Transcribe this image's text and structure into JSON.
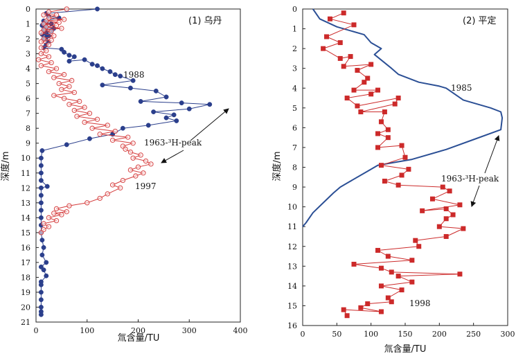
{
  "chart_data": [
    {
      "type": "scatter",
      "title": "(1) 乌丹",
      "xlabel": "氚含量/TU",
      "ylabel": "深度/m",
      "xlim": [
        0,
        400
      ],
      "ylim": [
        0,
        21
      ],
      "y_inverted": true,
      "x_ticks": [
        0,
        100,
        200,
        300,
        400
      ],
      "y_ticks": [
        0,
        1,
        2,
        3,
        4,
        5,
        6,
        7,
        8,
        9,
        10,
        11,
        12,
        13,
        14,
        15,
        16,
        17,
        18,
        19,
        20,
        21
      ],
      "annotation": "1963-³H-peak",
      "series": [
        {
          "name": "1988",
          "color": "#2b3f8c",
          "marker": "filled-circle",
          "points": [
            [
              120,
              0
            ],
            [
              20,
              0.3
            ],
            [
              25,
              0.5
            ],
            [
              45,
              0.6
            ],
            [
              15,
              0.8
            ],
            [
              20,
              0.9
            ],
            [
              30,
              1.0
            ],
            [
              12,
              1.1
            ],
            [
              20,
              1.2
            ],
            [
              35,
              1.3
            ],
            [
              15,
              1.4
            ],
            [
              30,
              1.5
            ],
            [
              20,
              1.6
            ],
            [
              12,
              1.7
            ],
            [
              25,
              1.8
            ],
            [
              20,
              1.9
            ],
            [
              15,
              2.0
            ],
            [
              25,
              2.2
            ],
            [
              20,
              2.4
            ],
            [
              15,
              2.6
            ],
            [
              50,
              2.7
            ],
            [
              55,
              2.9
            ],
            [
              65,
              3.1
            ],
            [
              75,
              3.2
            ],
            [
              65,
              3.5
            ],
            [
              95,
              3.4
            ],
            [
              110,
              3.7
            ],
            [
              120,
              3.8
            ],
            [
              130,
              4.0
            ],
            [
              145,
              4.2
            ],
            [
              155,
              4.4
            ],
            [
              165,
              4.5
            ],
            [
              190,
              4.8
            ],
            [
              130,
              5.1
            ],
            [
              185,
              5.3
            ],
            [
              235,
              5.5
            ],
            [
              255,
              5.9
            ],
            [
              205,
              6.2
            ],
            [
              285,
              6.3
            ],
            [
              340,
              6.4
            ],
            [
              300,
              6.7
            ],
            [
              230,
              6.9
            ],
            [
              270,
              7.1
            ],
            [
              255,
              7.3
            ],
            [
              275,
              7.5
            ],
            [
              220,
              7.8
            ],
            [
              170,
              8.0
            ],
            [
              150,
              8.4
            ],
            [
              105,
              8.7
            ],
            [
              60,
              9.1
            ],
            [
              12,
              9.5
            ],
            [
              10,
              10.0
            ],
            [
              10,
              10.5
            ],
            [
              10,
              11.0
            ],
            [
              10,
              11.5
            ],
            [
              22,
              11.9
            ],
            [
              10,
              12.0
            ],
            [
              10,
              12.5
            ],
            [
              10,
              13.0
            ],
            [
              10,
              13.5
            ],
            [
              10,
              14.0
            ],
            [
              10,
              14.5
            ],
            [
              10,
              15.0
            ],
            [
              12,
              15.5
            ],
            [
              15,
              16.0
            ],
            [
              12,
              16.5
            ],
            [
              20,
              17.0
            ],
            [
              10,
              17.3
            ],
            [
              15,
              17.5
            ],
            [
              20,
              17.9
            ],
            [
              10,
              18.3
            ],
            [
              10,
              18.5
            ],
            [
              10,
              19.0
            ],
            [
              10,
              19.5
            ],
            [
              10,
              20.0
            ],
            [
              10,
              20.3
            ],
            [
              10,
              20.5
            ]
          ]
        },
        {
          "name": "1997",
          "color": "#d43a3a",
          "marker": "open-circle",
          "points": [
            [
              60,
              0
            ],
            [
              25,
              0.2
            ],
            [
              15,
              0.4
            ],
            [
              40,
              0.4
            ],
            [
              25,
              0.6
            ],
            [
              55,
              0.7
            ],
            [
              20,
              0.8
            ],
            [
              45,
              0.9
            ],
            [
              15,
              1.0
            ],
            [
              40,
              1.1
            ],
            [
              20,
              1.2
            ],
            [
              50,
              1.3
            ],
            [
              15,
              1.4
            ],
            [
              30,
              1.5
            ],
            [
              10,
              1.6
            ],
            [
              35,
              1.8
            ],
            [
              15,
              2.0
            ],
            [
              30,
              2.1
            ],
            [
              10,
              2.2
            ],
            [
              25,
              2.4
            ],
            [
              10,
              2.6
            ],
            [
              20,
              2.8
            ],
            [
              10,
              3.0
            ],
            [
              25,
              3.2
            ],
            [
              5,
              3.4
            ],
            [
              30,
              3.6
            ],
            [
              10,
              3.8
            ],
            [
              40,
              4.0
            ],
            [
              25,
              4.2
            ],
            [
              55,
              4.4
            ],
            [
              35,
              4.6
            ],
            [
              70,
              4.8
            ],
            [
              45,
              5.0
            ],
            [
              65,
              5.2
            ],
            [
              50,
              5.4
            ],
            [
              75,
              5.6
            ],
            [
              35,
              5.8
            ],
            [
              55,
              6.0
            ],
            [
              85,
              6.2
            ],
            [
              65,
              6.4
            ],
            [
              95,
              6.6
            ],
            [
              75,
              6.8
            ],
            [
              105,
              7.0
            ],
            [
              80,
              7.2
            ],
            [
              120,
              7.4
            ],
            [
              95,
              7.6
            ],
            [
              140,
              7.8
            ],
            [
              110,
              8.0
            ],
            [
              155,
              8.2
            ],
            [
              125,
              8.4
            ],
            [
              180,
              8.6
            ],
            [
              150,
              8.8
            ],
            [
              190,
              9.0
            ],
            [
              170,
              9.2
            ],
            [
              175,
              9.4
            ],
            [
              185,
              9.6
            ],
            [
              205,
              9.8
            ],
            [
              190,
              10.0
            ],
            [
              215,
              10.2
            ],
            [
              225,
              10.4
            ],
            [
              200,
              10.6
            ],
            [
              185,
              10.8
            ],
            [
              210,
              11.0
            ],
            [
              195,
              11.2
            ],
            [
              170,
              11.5
            ],
            [
              150,
              11.8
            ],
            [
              165,
              12.0
            ],
            [
              140,
              12.4
            ],
            [
              125,
              12.7
            ],
            [
              100,
              13.0
            ],
            [
              65,
              13.2
            ],
            [
              40,
              13.4
            ],
            [
              60,
              13.6
            ],
            [
              35,
              13.7
            ],
            [
              50,
              13.8
            ],
            [
              25,
              14.0
            ],
            [
              40,
              14.2
            ],
            [
              15,
              14.4
            ],
            [
              25,
              14.6
            ],
            [
              15,
              14.8
            ],
            [
              10,
              15.0
            ]
          ]
        }
      ],
      "curve_labels": [
        "1988",
        "1997"
      ]
    },
    {
      "type": "line",
      "title": "(2) 平定",
      "xlabel": "氚含量/TU",
      "ylabel": "深度/m",
      "xlim": [
        0,
        300
      ],
      "ylim": [
        0,
        16
      ],
      "y_inverted": true,
      "x_ticks": [
        0,
        50,
        100,
        150,
        200,
        250,
        300
      ],
      "y_ticks": [
        0,
        1,
        2,
        3,
        4,
        5,
        6,
        7,
        8,
        9,
        10,
        11,
        12,
        13,
        14,
        15,
        16
      ],
      "annotation": "1963-³H-peak",
      "series": [
        {
          "name": "1985",
          "color": "#2b4f95",
          "marker": "none",
          "points": [
            [
              15,
              0
            ],
            [
              25,
              0.5
            ],
            [
              50,
              0.9
            ],
            [
              90,
              1.3
            ],
            [
              100,
              1.7
            ],
            [
              115,
              2.0
            ],
            [
              105,
              2.3
            ],
            [
              130,
              3.0
            ],
            [
              140,
              3.3
            ],
            [
              170,
              3.7
            ],
            [
              200,
              3.9
            ],
            [
              210,
              4.0
            ],
            [
              235,
              4.6
            ],
            [
              275,
              5.0
            ],
            [
              290,
              5.2
            ],
            [
              292,
              5.5
            ],
            [
              290,
              6.1
            ],
            [
              250,
              6.6
            ],
            [
              210,
              7.1
            ],
            [
              160,
              7.6
            ],
            [
              110,
              7.9
            ],
            [
              95,
              8.2
            ],
            [
              65,
              8.8
            ],
            [
              55,
              9.0
            ],
            [
              45,
              9.3
            ],
            [
              30,
              9.8
            ],
            [
              15,
              10.3
            ],
            [
              5,
              10.8
            ],
            [
              0,
              11.0
            ]
          ]
        },
        {
          "name": "1998",
          "color": "#cc2a2a",
          "marker": "filled-square",
          "points": [
            [
              60,
              0.2
            ],
            [
              40,
              0.5
            ],
            [
              75,
              0.8
            ],
            [
              35,
              1.4
            ],
            [
              55,
              1.7
            ],
            [
              30,
              2.0
            ],
            [
              55,
              2.5
            ],
            [
              70,
              2.4
            ],
            [
              60,
              2.9
            ],
            [
              100,
              2.8
            ],
            [
              80,
              3.1
            ],
            [
              95,
              3.5
            ],
            [
              90,
              3.7
            ],
            [
              75,
              4.1
            ],
            [
              110,
              4.1
            ],
            [
              100,
              4.3
            ],
            [
              65,
              4.5
            ],
            [
              80,
              4.9
            ],
            [
              140,
              4.5
            ],
            [
              135,
              4.8
            ],
            [
              85,
              5.2
            ],
            [
              120,
              5.2
            ],
            [
              115,
              5.7
            ],
            [
              125,
              6.1
            ],
            [
              110,
              6.3
            ],
            [
              125,
              6.5
            ],
            [
              110,
              7.0
            ],
            [
              145,
              6.9
            ],
            [
              150,
              7.5
            ],
            [
              115,
              7.9
            ],
            [
              155,
              8.1
            ],
            [
              145,
              8.4
            ],
            [
              120,
              8.7
            ],
            [
              140,
              8.9
            ],
            [
              205,
              9.0
            ],
            [
              215,
              9.2
            ],
            [
              190,
              9.6
            ],
            [
              230,
              9.9
            ],
            [
              175,
              10.2
            ],
            [
              210,
              10.1
            ],
            [
              220,
              10.4
            ],
            [
              210,
              10.6
            ],
            [
              200,
              11.0
            ],
            [
              235,
              11.1
            ],
            [
              210,
              11.5
            ],
            [
              165,
              11.7
            ],
            [
              170,
              12.0
            ],
            [
              110,
              12.2
            ],
            [
              125,
              12.5
            ],
            [
              160,
              12.7
            ],
            [
              75,
              12.9
            ],
            [
              115,
              13.1
            ],
            [
              130,
              13.3
            ],
            [
              230,
              13.4
            ],
            [
              140,
              13.5
            ],
            [
              160,
              13.8
            ],
            [
              115,
              14.0
            ],
            [
              145,
              14.2
            ],
            [
              125,
              14.6
            ],
            [
              130,
              14.8
            ],
            [
              95,
              14.9
            ],
            [
              85,
              15.1
            ],
            [
              115,
              15.3
            ],
            [
              60,
              15.2
            ],
            [
              65,
              15.5
            ]
          ]
        }
      ],
      "curve_labels": [
        "1985",
        "1998"
      ]
    }
  ]
}
